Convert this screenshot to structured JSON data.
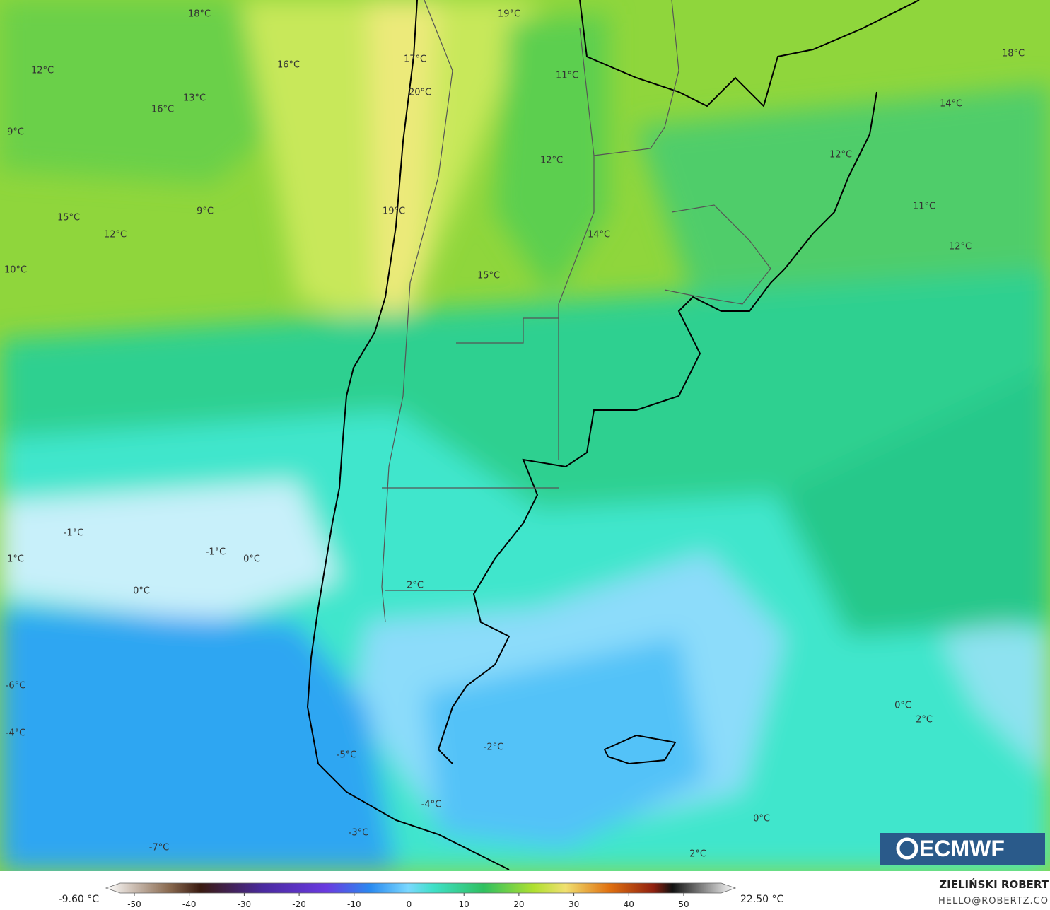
{
  "map_labels": [
    "18°C",
    "19°C",
    "17°C",
    "16°C",
    "12°C",
    "20°C",
    "13°C",
    "11°C",
    "16°C",
    "9°C",
    "12°C",
    "14°C",
    "12°C",
    "18°C",
    "19°C",
    "9°C",
    "15°C",
    "12°C",
    "11°C",
    "14°C",
    "12°C",
    "15°C",
    "10°C",
    "-1°C",
    "-1°C",
    "0°C",
    "1°C",
    "0°C",
    "2°C",
    "-6°C",
    "-4°C",
    "0°C",
    "2°C",
    "-2°C",
    "-5°C",
    "-4°C",
    "0°C",
    "-3°C",
    "-7°C",
    "2°C"
  ],
  "logo": "ECMWF",
  "colorbar": {
    "min_label": "-9.60 °C",
    "max_label": "22.50 °C",
    "ticks": [
      -50,
      -40,
      -30,
      -20,
      -10,
      0,
      10,
      20,
      30,
      40,
      50
    ]
  },
  "author": {
    "name": "ZIELIŃSKI ROBERT",
    "contact": "HELLO@ROBERTZ.CO"
  }
}
